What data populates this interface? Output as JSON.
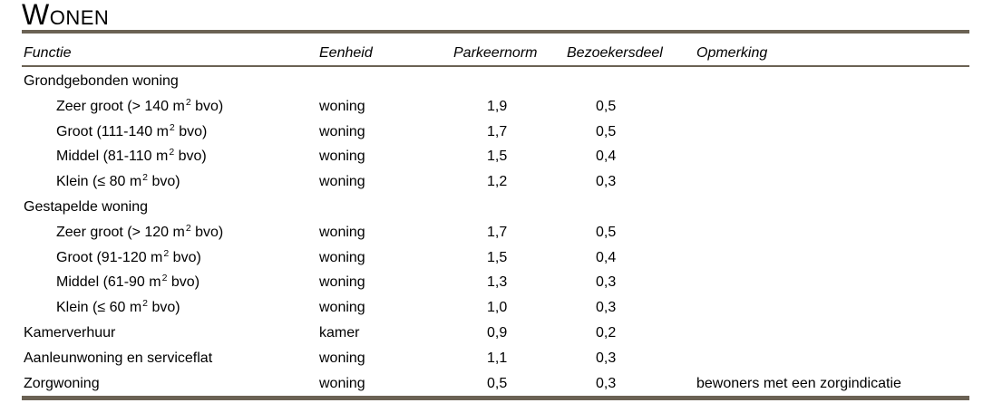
{
  "page": {
    "background_color": "#ffffff",
    "text_color": "#000000",
    "rule_color": "#6b6254"
  },
  "title": "Wonen",
  "table": {
    "columns": [
      {
        "label": "Functie"
      },
      {
        "label": "Eenheid"
      },
      {
        "label": "Parkeernorm"
      },
      {
        "label": "Bezoekersdeel"
      },
      {
        "label": "Opmerking"
      }
    ],
    "rows": [
      {
        "type": "group",
        "functie": "Grondgebonden woning",
        "eenheid": "",
        "parkeernorm": "",
        "bezoekersdeel": "",
        "opmerking": ""
      },
      {
        "type": "sub",
        "functie": "Zeer groot (> 140 m² bvo)",
        "eenheid": "woning",
        "parkeernorm": "1,9",
        "bezoekersdeel": "0,5",
        "opmerking": ""
      },
      {
        "type": "sub",
        "functie": "Groot (111-140 m² bvo)",
        "eenheid": "woning",
        "parkeernorm": "1,7",
        "bezoekersdeel": "0,5",
        "opmerking": ""
      },
      {
        "type": "sub",
        "functie": "Middel (81-110 m² bvo)",
        "eenheid": "woning",
        "parkeernorm": "1,5",
        "bezoekersdeel": "0,4",
        "opmerking": ""
      },
      {
        "type": "sub",
        "functie": "Klein (≤ 80 m² bvo)",
        "eenheid": "woning",
        "parkeernorm": "1,2",
        "bezoekersdeel": "0,3",
        "opmerking": ""
      },
      {
        "type": "group",
        "functie": "Gestapelde woning",
        "eenheid": "",
        "parkeernorm": "",
        "bezoekersdeel": "",
        "opmerking": ""
      },
      {
        "type": "sub",
        "functie": "Zeer groot (> 120 m² bvo)",
        "eenheid": "woning",
        "parkeernorm": "1,7",
        "bezoekersdeel": "0,5",
        "opmerking": ""
      },
      {
        "type": "sub",
        "functie": "Groot (91-120 m² bvo)",
        "eenheid": "woning",
        "parkeernorm": "1,5",
        "bezoekersdeel": "0,4",
        "opmerking": ""
      },
      {
        "type": "sub",
        "functie": "Middel (61-90 m² bvo)",
        "eenheid": "woning",
        "parkeernorm": "1,3",
        "bezoekersdeel": "0,3",
        "opmerking": ""
      },
      {
        "type": "sub",
        "functie": "Klein (≤ 60 m² bvo)",
        "eenheid": "woning",
        "parkeernorm": "1,0",
        "bezoekersdeel": "0,3",
        "opmerking": ""
      },
      {
        "type": "main",
        "functie": "Kamerverhuur",
        "eenheid": "kamer",
        "parkeernorm": "0,9",
        "bezoekersdeel": "0,2",
        "opmerking": ""
      },
      {
        "type": "main",
        "functie": "Aanleunwoning en serviceflat",
        "eenheid": "woning",
        "parkeernorm": "1,1",
        "bezoekersdeel": "0,3",
        "opmerking": ""
      },
      {
        "type": "main",
        "functie": "Zorgwoning",
        "eenheid": "woning",
        "parkeernorm": "0,5",
        "bezoekersdeel": "0,3",
        "opmerking": "bewoners met een zorgindicatie"
      }
    ]
  }
}
